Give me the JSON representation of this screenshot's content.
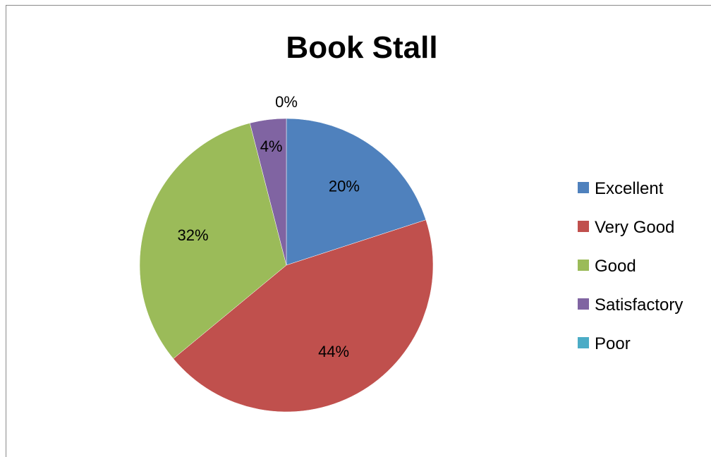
{
  "chart_data": {
    "type": "pie",
    "title": "Book Stall",
    "categories": [
      "Excellent",
      "Very Good",
      "Good",
      "Satisfactory",
      "Poor"
    ],
    "values": [
      20,
      44,
      32,
      4,
      0
    ],
    "data_labels": [
      "20%",
      "44%",
      "32%",
      "4%",
      "0%"
    ],
    "colors": [
      "#4f81bd",
      "#c0504d",
      "#9bbb59",
      "#8064a2",
      "#4bacc6"
    ],
    "legend_position": "right",
    "start_angle": "12 o'clock, clockwise"
  }
}
